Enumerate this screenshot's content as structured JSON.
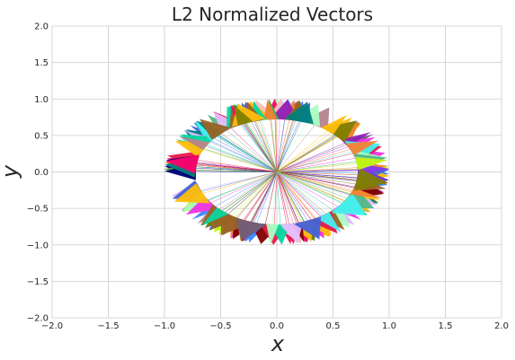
{
  "chart_data": {
    "type": "scatter",
    "title": "L2  Normalized Vectors",
    "xlabel": "x",
    "ylabel": "y",
    "xlim": [
      -2.0,
      2.0
    ],
    "ylim": [
      -2.0,
      2.0
    ],
    "xticks": [
      "−2.0",
      "−1.5",
      "−1.0",
      "−0.5",
      "0.0",
      "0.5",
      "1.0",
      "1.5",
      "2.0"
    ],
    "yticks": [
      "−2.0",
      "−1.5",
      "−1.0",
      "−0.5",
      "0.0",
      "0.5",
      "1.0",
      "1.5",
      "2.0"
    ],
    "xtick_values": [
      -2.0,
      -1.5,
      -1.0,
      -0.5,
      0.0,
      0.5,
      1.0,
      1.5,
      2.0
    ],
    "ytick_values": [
      -2.0,
      -1.5,
      -1.0,
      -0.5,
      0.0,
      0.5,
      1.0,
      1.5,
      2.0
    ],
    "grid": true,
    "vector_count": 180,
    "vector_norm": 1.0,
    "origin": [
      0.0,
      0.0
    ],
    "style": "vectors drawn from origin to the unit circle with multi-colored arrowheads"
  }
}
